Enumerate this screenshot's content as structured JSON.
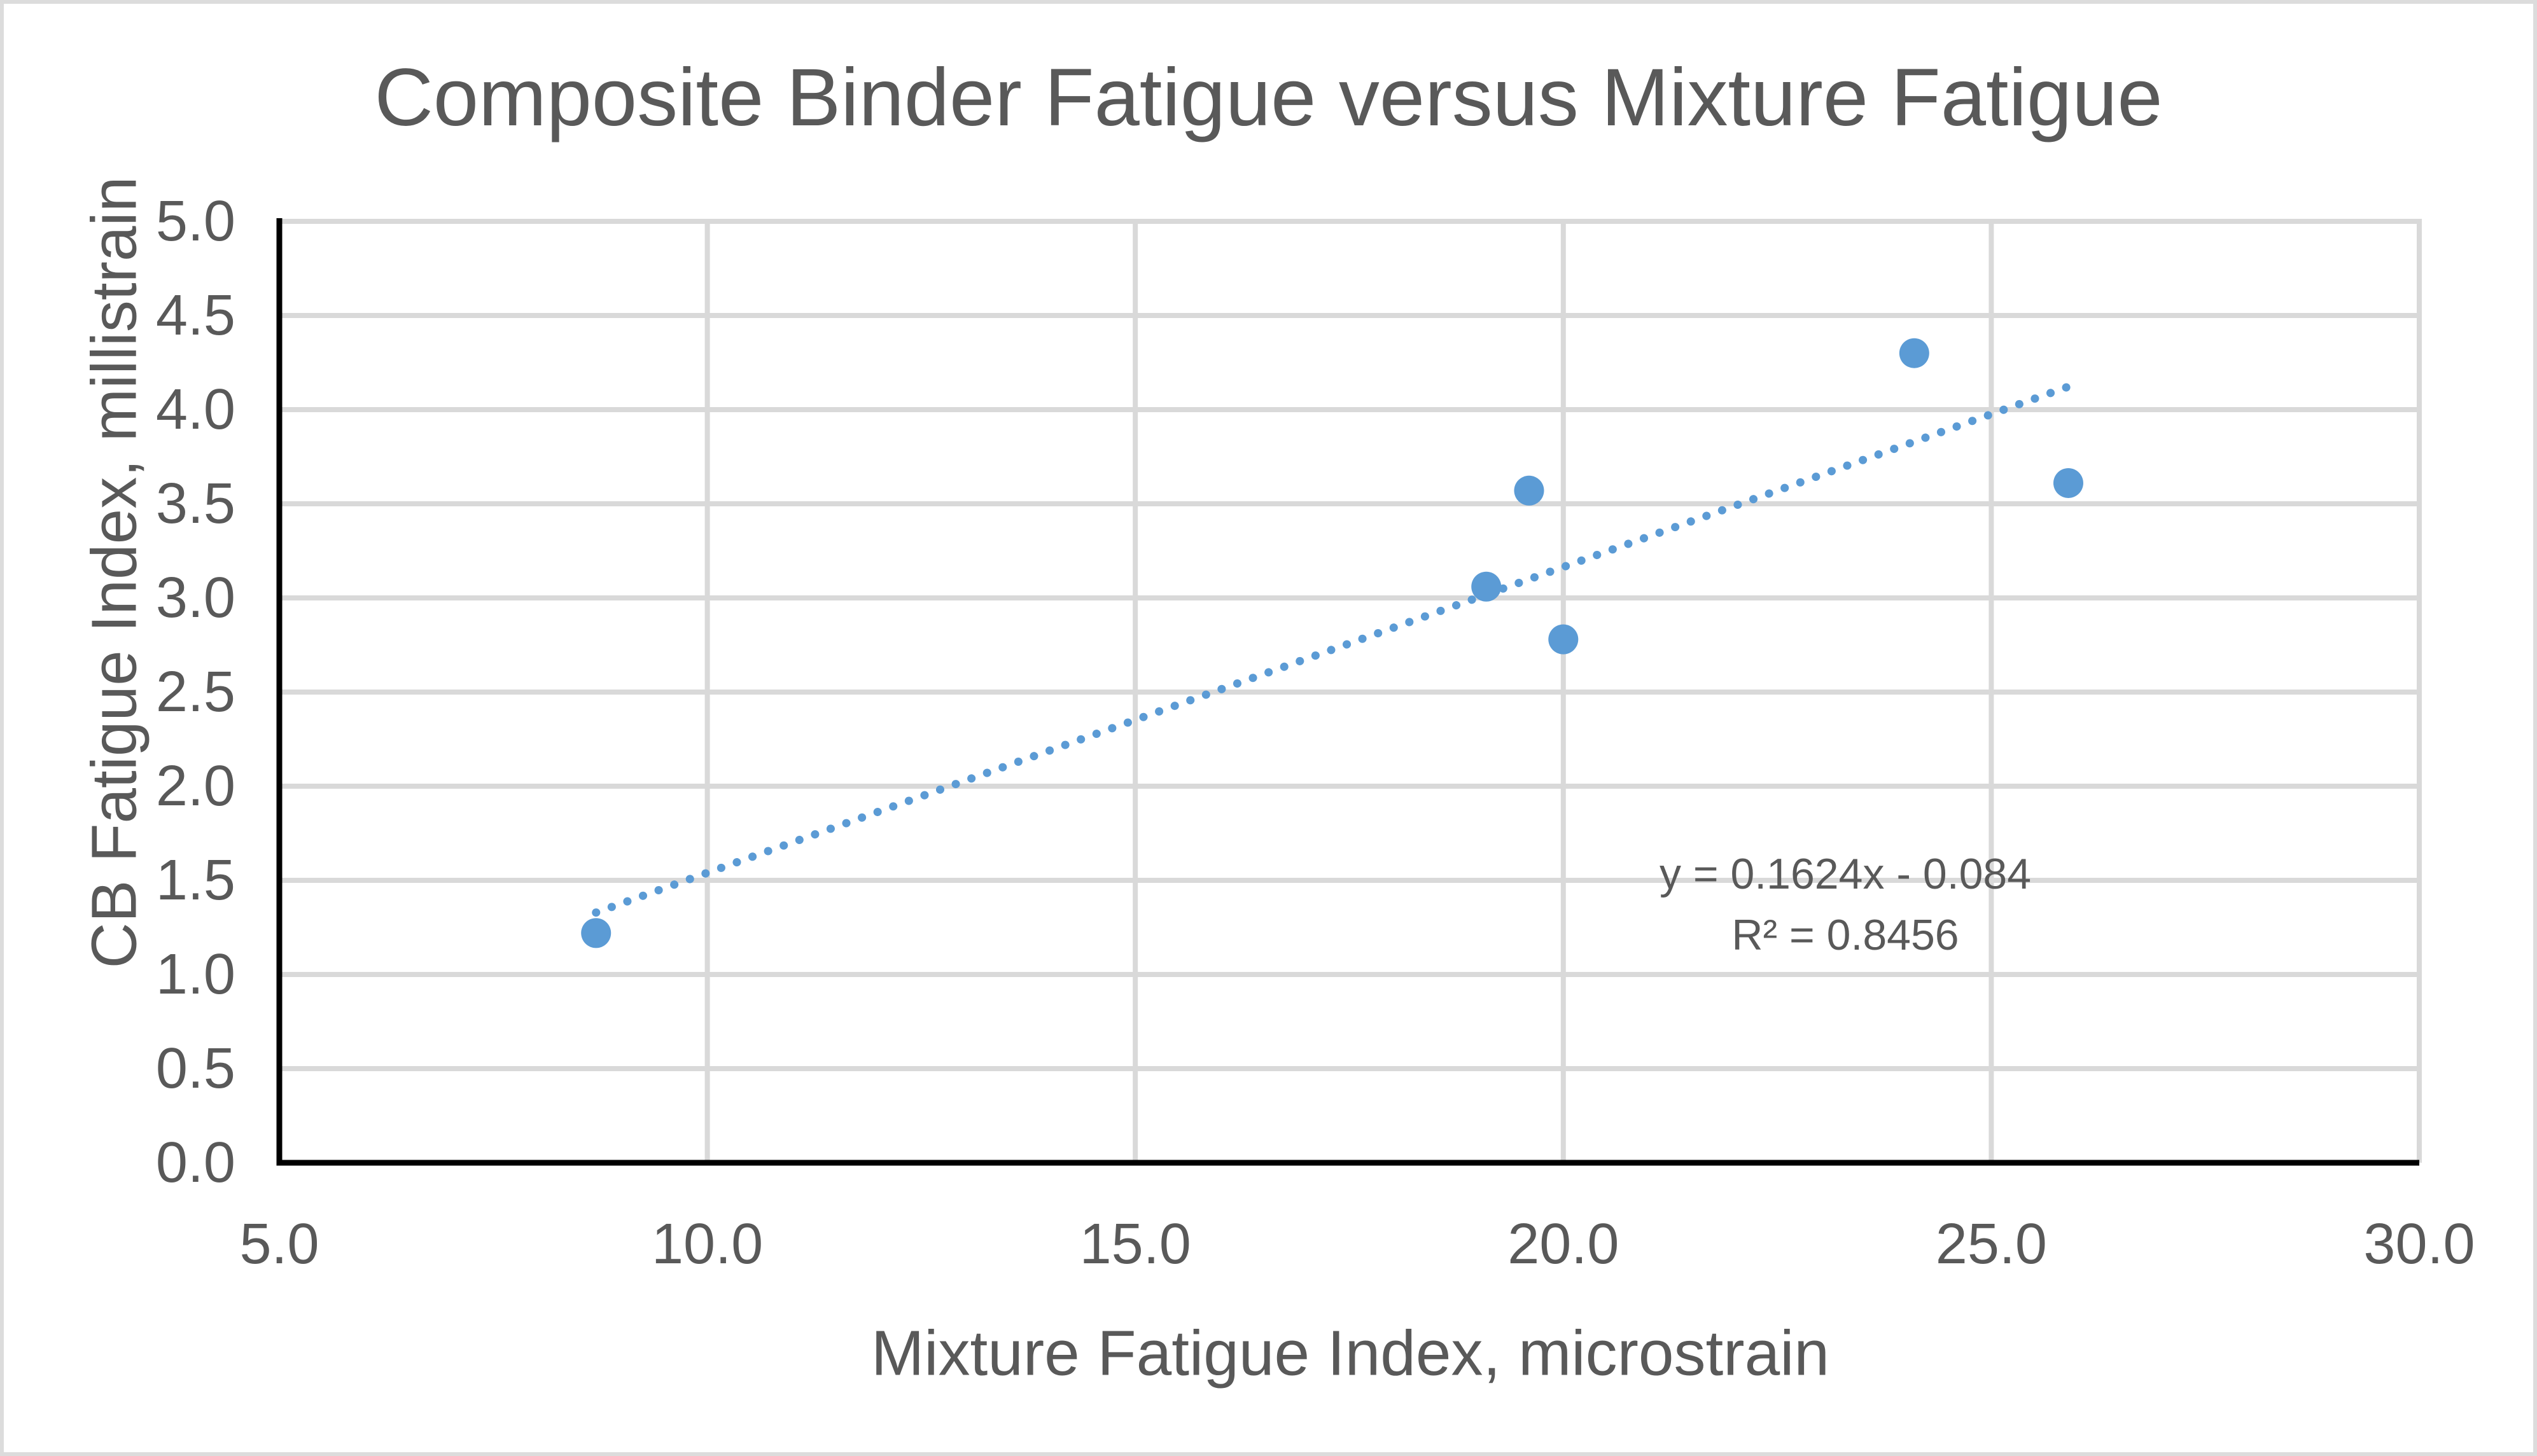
{
  "page": {
    "background": "#FFFFFF",
    "border_color": "#DCDCDC"
  },
  "chart_data": {
    "type": "scatter",
    "title": "Composite Binder Fatigue versus Mixture Fatigue",
    "xlabel": "Mixture Fatigue Index, microstrain",
    "ylabel": "CB Fatigue Index, millistrain",
    "xlim": [
      5.0,
      30.0
    ],
    "ylim": [
      0.0,
      5.0
    ],
    "grid": true,
    "legend_position": "none",
    "x_ticks": [
      {
        "value": 5.0,
        "label": "5.0"
      },
      {
        "value": 10.0,
        "label": "10.0"
      },
      {
        "value": 15.0,
        "label": "15.0"
      },
      {
        "value": 20.0,
        "label": "20.0"
      },
      {
        "value": 25.0,
        "label": "25.0"
      },
      {
        "value": 30.0,
        "label": "30.0"
      }
    ],
    "y_ticks": [
      {
        "value": 0.0,
        "label": "0.0"
      },
      {
        "value": 0.5,
        "label": "0.5"
      },
      {
        "value": 1.0,
        "label": "1.0"
      },
      {
        "value": 1.5,
        "label": "1.5"
      },
      {
        "value": 2.0,
        "label": "2.0"
      },
      {
        "value": 2.5,
        "label": "2.5"
      },
      {
        "value": 3.0,
        "label": "3.0"
      },
      {
        "value": 3.5,
        "label": "3.5"
      },
      {
        "value": 4.0,
        "label": "4.0"
      },
      {
        "value": 4.5,
        "label": "4.5"
      },
      {
        "value": 5.0,
        "label": "5.0"
      }
    ],
    "points": [
      {
        "x": 8.7,
        "y": 1.22
      },
      {
        "x": 19.1,
        "y": 3.06
      },
      {
        "x": 19.6,
        "y": 3.57
      },
      {
        "x": 20.0,
        "y": 2.78
      },
      {
        "x": 24.1,
        "y": 4.3
      },
      {
        "x": 25.9,
        "y": 3.61
      }
    ],
    "trendline": {
      "type": "linear",
      "style": "dotted",
      "slope": 0.1624,
      "intercept": -0.084,
      "x_start": 8.7,
      "x_end": 25.9,
      "equation_label": "y = 0.1624x - 0.084",
      "r_squared_label": "R² = 0.8456"
    },
    "colors": {
      "marker": "#5B9BD5",
      "trendline": "#5B9BD5",
      "gridline": "#D9D9D9",
      "axis_line": "#000000",
      "text": "#595959"
    }
  }
}
